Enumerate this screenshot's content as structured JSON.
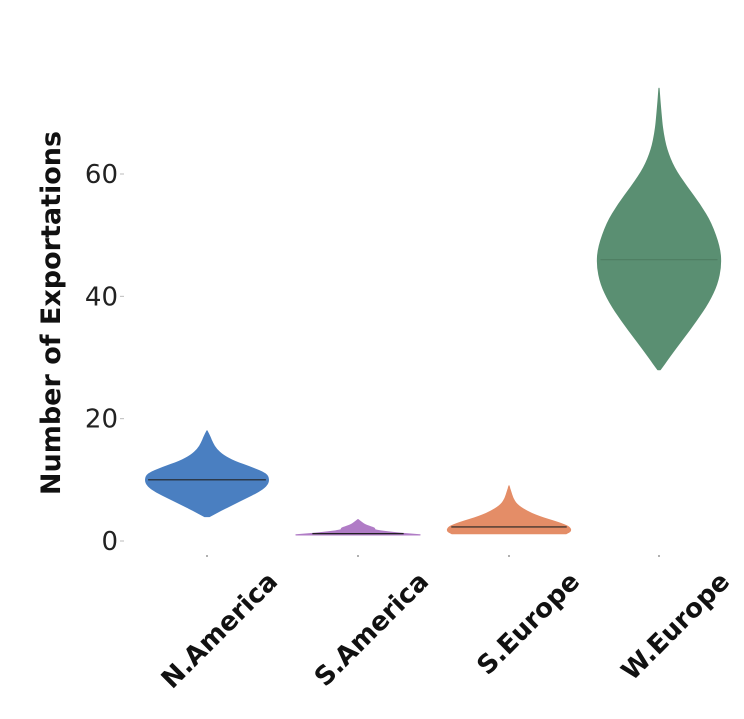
{
  "chart_data": {
    "type": "violin",
    "title": "",
    "xlabel": "",
    "ylabel": "Number of Exportations",
    "ylim": [
      0,
      75
    ],
    "yticks": [
      0,
      20,
      40,
      60
    ],
    "grid": false,
    "categories": [
      "N.America",
      "S.America",
      "S.Europe",
      "W.Europe"
    ],
    "series": [
      {
        "category": "N.America",
        "color": "#4a7fc1",
        "min": 4,
        "max": 18,
        "median": 10,
        "profile": [
          [
            4,
            0.04
          ],
          [
            5,
            0.22
          ],
          [
            6,
            0.42
          ],
          [
            7,
            0.62
          ],
          [
            8,
            0.82
          ],
          [
            9,
            0.96
          ],
          [
            10,
            1.0
          ],
          [
            11,
            0.96
          ],
          [
            12,
            0.72
          ],
          [
            13,
            0.44
          ],
          [
            14,
            0.26
          ],
          [
            15,
            0.15
          ],
          [
            16,
            0.09
          ],
          [
            17,
            0.05
          ],
          [
            18,
            0.0
          ]
        ]
      },
      {
        "category": "S.America",
        "color": "#b07cc6",
        "min": 1,
        "max": 3.5,
        "median": 1.2,
        "profile": [
          [
            1.0,
            1.0
          ],
          [
            1.4,
            0.55
          ],
          [
            1.8,
            0.25
          ],
          [
            2.1,
            0.28
          ],
          [
            2.5,
            0.14
          ],
          [
            3.0,
            0.06
          ],
          [
            3.5,
            0.0
          ]
        ]
      },
      {
        "category": "S.Europe",
        "color": "#e48d67",
        "min": 1.2,
        "max": 9,
        "median": 2.3,
        "profile": [
          [
            1.2,
            0.92
          ],
          [
            1.6,
            1.0
          ],
          [
            2.3,
            0.98
          ],
          [
            3.0,
            0.8
          ],
          [
            4.0,
            0.48
          ],
          [
            5.0,
            0.26
          ],
          [
            6.0,
            0.12
          ],
          [
            7.0,
            0.06
          ],
          [
            8.0,
            0.03
          ],
          [
            9.0,
            0.0
          ]
        ]
      },
      {
        "category": "W.Europe",
        "color": "#5a8f72",
        "min": 28,
        "max": 74,
        "median": 46,
        "profile": [
          [
            28,
            0.02
          ],
          [
            30,
            0.16
          ],
          [
            33,
            0.38
          ],
          [
            36,
            0.6
          ],
          [
            39,
            0.8
          ],
          [
            42,
            0.94
          ],
          [
            45,
            1.0
          ],
          [
            48,
            0.98
          ],
          [
            52,
            0.84
          ],
          [
            55,
            0.66
          ],
          [
            58,
            0.44
          ],
          [
            61,
            0.24
          ],
          [
            64,
            0.12
          ],
          [
            67,
            0.06
          ],
          [
            70,
            0.03
          ],
          [
            74,
            0.0
          ]
        ]
      }
    ]
  }
}
